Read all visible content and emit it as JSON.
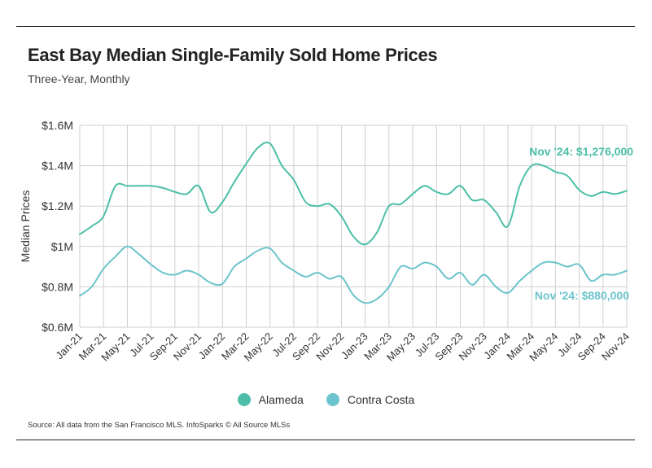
{
  "title": "East Bay Median Single-Family Sold Home Prices",
  "subtitle": "Three-Year, Monthly",
  "source": "Source:  All data from the San Francisco MLS. InfoSparks © All Source MLSs",
  "colors": {
    "alameda": "#4dbfa8",
    "contra_costa": "#6cc4cc",
    "grid": "#cfcfcf"
  },
  "chart_data": {
    "type": "line",
    "title": "East Bay Median Single-Family Sold Home Prices",
    "subtitle": "Three-Year, Monthly",
    "ylabel": "Median Prices",
    "xlabel": "",
    "ylim": [
      600000,
      1600000
    ],
    "yticks": [
      600000,
      800000,
      1000000,
      1200000,
      1400000,
      1600000
    ],
    "ytick_labels": [
      "$0.6M",
      "$0.8M",
      "$1M",
      "$1.2M",
      "$1.4M",
      "$1.6M"
    ],
    "x": [
      "Jan-21",
      "Feb-21",
      "Mar-21",
      "Apr-21",
      "May-21",
      "Jun-21",
      "Jul-21",
      "Aug-21",
      "Sep-21",
      "Oct-21",
      "Nov-21",
      "Dec-21",
      "Jan-22",
      "Feb-22",
      "Mar-22",
      "Apr-22",
      "May-22",
      "Jun-22",
      "Jul-22",
      "Aug-22",
      "Sep-22",
      "Oct-22",
      "Nov-22",
      "Dec-22",
      "Jan-23",
      "Feb-23",
      "Mar-23",
      "Apr-23",
      "May-23",
      "Jun-23",
      "Jul-23",
      "Aug-23",
      "Sep-23",
      "Oct-23",
      "Nov-23",
      "Dec-23",
      "Jan-24",
      "Feb-24",
      "Mar-24",
      "Apr-24",
      "May-24",
      "Jun-24",
      "Jul-24",
      "Aug-24",
      "Sep-24",
      "Oct-24",
      "Nov-24"
    ],
    "xtick_labels": [
      "Jan-21",
      "Mar-21",
      "May-21",
      "Jul-21",
      "Sep-21",
      "Nov-21",
      "Jan-22",
      "Mar-22",
      "May-22",
      "Jul-22",
      "Sep-22",
      "Nov-22",
      "Jan-23",
      "Mar-23",
      "May-23",
      "Jul-23",
      "Sep-23",
      "Nov-23",
      "Jan-24",
      "Mar-24",
      "May-24",
      "Jul-24",
      "Sep-24",
      "Nov-24"
    ],
    "grid": true,
    "legend": "bottom-center",
    "series": [
      {
        "name": "Alameda",
        "values": [
          1060000,
          1100000,
          1150000,
          1300000,
          1300000,
          1300000,
          1300000,
          1290000,
          1270000,
          1260000,
          1300000,
          1170000,
          1220000,
          1320000,
          1410000,
          1490000,
          1510000,
          1400000,
          1330000,
          1220000,
          1200000,
          1210000,
          1150000,
          1050000,
          1010000,
          1070000,
          1200000,
          1210000,
          1260000,
          1300000,
          1270000,
          1260000,
          1300000,
          1230000,
          1230000,
          1170000,
          1100000,
          1300000,
          1400000,
          1400000,
          1370000,
          1350000,
          1280000,
          1250000,
          1270000,
          1260000,
          1276000
        ]
      },
      {
        "name": "Contra Costa",
        "values": [
          755000,
          800000,
          890000,
          950000,
          1000000,
          960000,
          910000,
          870000,
          860000,
          880000,
          860000,
          820000,
          815000,
          900000,
          940000,
          980000,
          990000,
          920000,
          880000,
          850000,
          870000,
          840000,
          850000,
          760000,
          720000,
          740000,
          800000,
          900000,
          890000,
          920000,
          900000,
          840000,
          870000,
          810000,
          860000,
          800000,
          770000,
          830000,
          880000,
          920000,
          920000,
          900000,
          910000,
          830000,
          860000,
          860000,
          880000
        ]
      }
    ],
    "annotations": [
      {
        "series": "Alameda",
        "text": "Nov '24: $1,276,000"
      },
      {
        "series": "Contra Costa",
        "text": "Nov '24: $880,000"
      }
    ]
  }
}
